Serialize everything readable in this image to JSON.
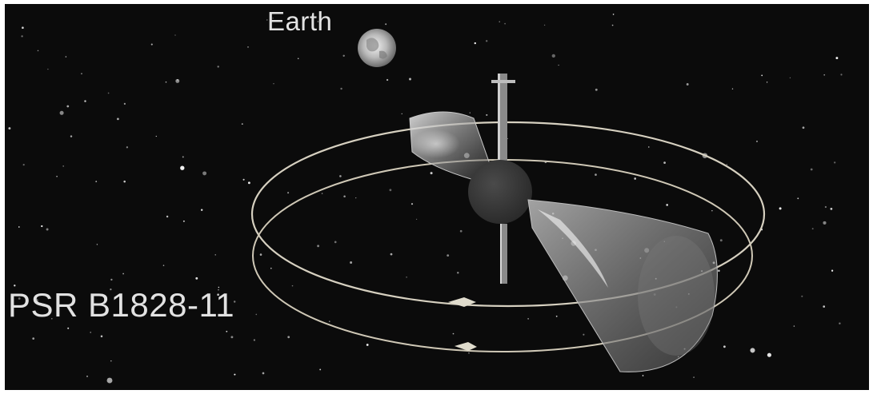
{
  "labels": {
    "earth": "Earth",
    "pulsar": "PSR B1828-11"
  },
  "colors": {
    "sky": "#0b0b0b",
    "frame": "#ffffff",
    "star_body": "#3c3c3c",
    "beam": "#d8d8d8",
    "orbit_ring": "#d6d0c0",
    "label_text": "#e2e2e2"
  },
  "objects": {
    "earth": "earth-globe",
    "pulsar": "neutron-star",
    "beams": [
      "radio-beam-upper",
      "radio-beam-lower"
    ],
    "orbits": [
      "precession-ring-outer",
      "precession-ring-inner"
    ],
    "spin_axis": "rotation-axis"
  }
}
